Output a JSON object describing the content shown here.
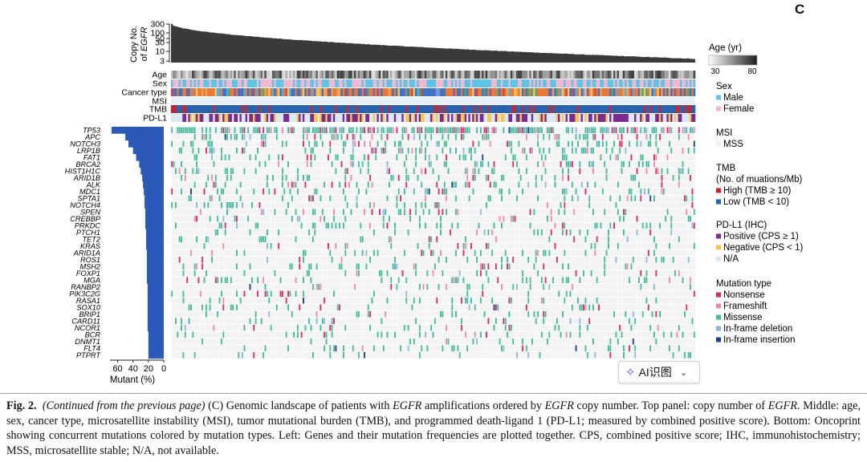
{
  "panel_letter": "C",
  "ai_button": {
    "label": "AI识图",
    "icon": "ai-sparkle-icon",
    "chevron": "chevron-down-icon"
  },
  "caption": {
    "fig_label": "Fig. 2.",
    "cont": "(Continued from the previous page)",
    "t1": " (C) Genomic landscape of patients with ",
    "egfr": "EGFR",
    "t2": " amplifications ordered by ",
    "t3": " copy number. Top panel: copy number of ",
    "t4": ". Middle: age, sex, cancer type, microsatellite instability (MSI), tumor mutational burden (TMB), and programmed death-ligand 1 (PD-L1; measured by combined positive score). Bottom: Oncoprint showing concurrent mutations colored by mutation types. Left: Genes and their mutation frequencies are plotted together. CPS, combined positive score; IHC, immunohistochemistry; MSS, microsatellite stable; N/A, not available."
  },
  "chart_data": {
    "type": "heatmap",
    "title": "",
    "copy_number": {
      "ylabel_line1": "Copy No.",
      "ylabel_line2": "of EGFR",
      "yticks": [
        "300",
        "100",
        "50",
        "30",
        "10",
        "3"
      ],
      "ytick_values": [
        300,
        100,
        50,
        30,
        10,
        3
      ],
      "n_patients": 275,
      "max": 300,
      "min": 2.5
    },
    "tracks": [
      "Age",
      "Sex",
      "Cancer type",
      "MSI",
      "TMB",
      "PD-L1"
    ],
    "genes": [
      "TP53",
      "APC",
      "NOTCH3",
      "LRP1B",
      "FAT1",
      "BRCA2",
      "HIST1H1C",
      "ARID1B",
      "ALK",
      "MDC1",
      "SPTA1",
      "NOTCH4",
      "SPEN",
      "CREBBP",
      "PRKDC",
      "PTCH1",
      "TET2",
      "KRAS",
      "ARID1A",
      "ROS1",
      "MSH2",
      "FOXP1",
      "MGA",
      "RANBP2",
      "PIK3C2G",
      "RASA1",
      "SOX10",
      "BRIP1",
      "CARD11",
      "NCOR1",
      "BCR",
      "DNMT1",
      "FLT4",
      "PTPRT"
    ],
    "mutant_pct": [
      68,
      50,
      46,
      40,
      36,
      32,
      30,
      28,
      27,
      26,
      25,
      25,
      24,
      24,
      24,
      23,
      23,
      23,
      22,
      22,
      22,
      22,
      22,
      21,
      21,
      21,
      21,
      21,
      21,
      21,
      20,
      20,
      20,
      20
    ],
    "mutant_axis": {
      "label": "Mutant (%)",
      "ticks": [
        60,
        40,
        20,
        0
      ],
      "max": 70
    },
    "legend": {
      "age": {
        "title": "Age (yr)",
        "min_label": "30",
        "max_label": "80",
        "min": 30,
        "max": 80
      },
      "sex": {
        "title": "Sex",
        "items": [
          {
            "label": "Male",
            "color": "#5ec4e6"
          },
          {
            "label": "Female",
            "color": "#f3b8d0"
          }
        ]
      },
      "msi": {
        "title": "MSI",
        "items": [
          {
            "label": "MSS",
            "color": "#e6f1f6"
          }
        ]
      },
      "tmb": {
        "title": "TMB",
        "subtitle": "(No. of muations/Mb)",
        "items": [
          {
            "label": "High (TMB ≥ 10)",
            "color": "#c9252e"
          },
          {
            "label": "Low (TMB < 10)",
            "color": "#2a62ad"
          }
        ]
      },
      "pdl1": {
        "title": "PD-L1 (IHC)",
        "items": [
          {
            "label": "Positive (CPS ≥ 1)",
            "color": "#7b2c8e"
          },
          {
            "label": "Negative (CPS < 1)",
            "color": "#f4c84a"
          },
          {
            "label": "N/A",
            "color": "#dbe7f4"
          }
        ]
      },
      "mutation": {
        "title": "Mutation type",
        "items": [
          {
            "label": "Nonsense",
            "color": "#d12b6a"
          },
          {
            "label": "Frameshift",
            "color": "#ee87ab"
          },
          {
            "label": "Missense",
            "color": "#45b79b"
          },
          {
            "label": "In-frame deletion",
            "color": "#8fb4de"
          },
          {
            "label": "In-frame insertion",
            "color": "#1d3f8a"
          }
        ]
      }
    },
    "cancer_type_colors": [
      "#e8793a",
      "#3c74c4",
      "#f0a44a",
      "#7d5fb0",
      "#55a9e0",
      "#c94d3e",
      "#f2c65a",
      "#4aa874"
    ],
    "bar_color": "#2a59b8",
    "cn_color": "#3a3a3a",
    "empty_color": "#f1f1f1"
  }
}
